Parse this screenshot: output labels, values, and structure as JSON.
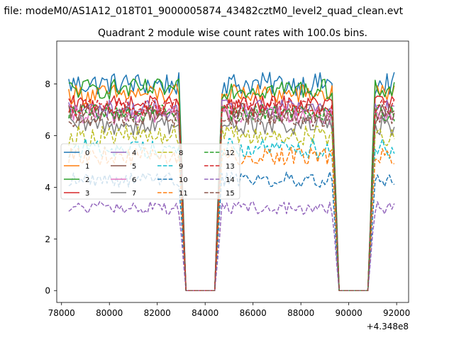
{
  "suptitle": "n file: modeM0/AS1A12_018T01_9000005874_43482cztM0_level2_quad_clean.evt",
  "chart_data": {
    "type": "line",
    "title": "Quadrant 2 module wise count rates with 100.0s bins.",
    "xlabel": "",
    "ylabel": "",
    "x_offset_label": "+4.348e8",
    "xlim": [
      77800,
      92500
    ],
    "ylim": [
      -0.46,
      9.66
    ],
    "xticks": [
      78000,
      80000,
      82000,
      84000,
      86000,
      88000,
      90000,
      92000
    ],
    "xtick_labels": [
      "78000",
      "80000",
      "82000",
      "84000",
      "86000",
      "88000",
      "90000",
      "92000"
    ],
    "yticks": [
      0,
      2,
      4,
      6,
      8
    ],
    "ytick_labels": [
      "0",
      "2",
      "4",
      "6",
      "8"
    ],
    "grid": false,
    "legend_placement": "center-left",
    "legend_columns": 4,
    "segments": [
      {
        "x_start": 78300,
        "x_end": 82900,
        "active": true
      },
      {
        "x_start": 82900,
        "x_end": 83200,
        "active": "ramp-down"
      },
      {
        "x_start": 83200,
        "x_end": 84400,
        "active": false
      },
      {
        "x_start": 84400,
        "x_end": 84700,
        "active": "ramp-up"
      },
      {
        "x_start": 84700,
        "x_end": 89300,
        "active": true
      },
      {
        "x_start": 89300,
        "x_end": 89600,
        "active": "ramp-down"
      },
      {
        "x_start": 89600,
        "x_end": 90800,
        "active": false
      },
      {
        "x_start": 90800,
        "x_end": 91100,
        "active": "ramp-up"
      },
      {
        "x_start": 91100,
        "x_end": 91900,
        "active": true
      }
    ],
    "series": [
      {
        "name": "0",
        "color": "#1f77b4",
        "style": "solid",
        "mean": 8.0,
        "amp": 0.45
      },
      {
        "name": "1",
        "color": "#ff7f0e",
        "style": "solid",
        "mean": 7.6,
        "amp": 0.4
      },
      {
        "name": "2",
        "color": "#2ca02c",
        "style": "solid",
        "mean": 7.8,
        "amp": 0.4
      },
      {
        "name": "3",
        "color": "#d62728",
        "style": "solid",
        "mean": 7.2,
        "amp": 0.35
      },
      {
        "name": "4",
        "color": "#9467bd",
        "style": "solid",
        "mean": 7.0,
        "amp": 0.4
      },
      {
        "name": "5",
        "color": "#8c564b",
        "style": "solid",
        "mean": 6.9,
        "amp": 0.35
      },
      {
        "name": "6",
        "color": "#e377c2",
        "style": "solid",
        "mean": 6.8,
        "amp": 0.4
      },
      {
        "name": "7",
        "color": "#7f7f7f",
        "style": "solid",
        "mean": 6.4,
        "amp": 0.4
      },
      {
        "name": "8",
        "color": "#bcbd22",
        "style": "dashed",
        "mean": 6.0,
        "amp": 0.4
      },
      {
        "name": "9",
        "color": "#17becf",
        "style": "dashed",
        "mean": 5.5,
        "amp": 0.4
      },
      {
        "name": "10",
        "color": "#1f77b4",
        "style": "dashed",
        "mean": 4.3,
        "amp": 0.3
      },
      {
        "name": "11",
        "color": "#ff7f0e",
        "style": "dashed",
        "mean": 5.2,
        "amp": 0.35
      },
      {
        "name": "12",
        "color": "#2ca02c",
        "style": "dashed",
        "mean": 6.9,
        "amp": 0.35
      },
      {
        "name": "13",
        "color": "#d62728",
        "style": "dashed",
        "mean": 7.1,
        "amp": 0.35
      },
      {
        "name": "14",
        "color": "#9467bd",
        "style": "dashed",
        "mean": 3.2,
        "amp": 0.25
      },
      {
        "name": "15",
        "color": "#8c564b",
        "style": "dashed",
        "mean": 6.7,
        "amp": 0.35
      }
    ]
  }
}
